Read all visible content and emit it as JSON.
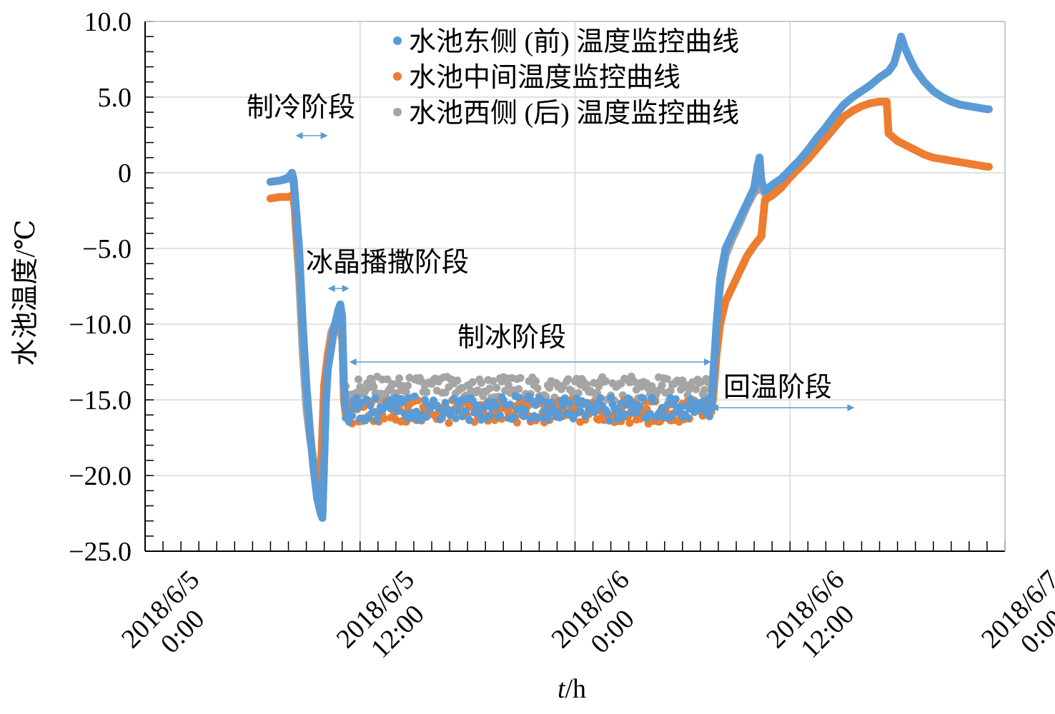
{
  "chart_data": {
    "type": "scatter",
    "ylabel": "水池温度/℃",
    "xlabel_italic": "t",
    "xlabel_unit": "/h",
    "ylim": [
      -25,
      10
    ],
    "xlim_hours": [
      0,
      48
    ],
    "y_ticks": [
      {
        "value": 10,
        "label": "10.0"
      },
      {
        "value": 5,
        "label": "5.0"
      },
      {
        "value": 0,
        "label": "0"
      },
      {
        "value": -5,
        "label": "−5.0"
      },
      {
        "value": -10,
        "label": "−10.0"
      },
      {
        "value": -15,
        "label": "−15.0"
      },
      {
        "value": -20,
        "label": "−20.0"
      },
      {
        "value": -25,
        "label": "−25.0"
      }
    ],
    "x_ticks": [
      {
        "hour": 0,
        "line1": "2018/6/5",
        "line2": "0:00"
      },
      {
        "hour": 12,
        "line1": "2018/6/5",
        "line2": "12:00"
      },
      {
        "hour": 24,
        "line1": "2018/6/6",
        "line2": "0:00"
      },
      {
        "hour": 36,
        "line1": "2018/6/6",
        "line2": "12:00"
      },
      {
        "hour": 48,
        "line1": "2018/6/7",
        "line2": "0:00"
      }
    ],
    "grid": true,
    "legend_position": "top",
    "series": [
      {
        "name": "水池东侧 (前) 温度监控曲线",
        "color": "#5B9BD5",
        "points": [
          [
            7.0,
            -0.6
          ],
          [
            7.6,
            -0.5
          ],
          [
            8.0,
            -0.3
          ],
          [
            8.2,
            0.0
          ],
          [
            8.3,
            -0.5
          ],
          [
            8.4,
            -2.0
          ],
          [
            8.6,
            -5.0
          ],
          [
            8.8,
            -10.0
          ],
          [
            9.0,
            -14.0
          ],
          [
            9.2,
            -17.0
          ],
          [
            9.4,
            -19.5
          ],
          [
            9.6,
            -21.5
          ],
          [
            9.8,
            -22.5
          ],
          [
            9.9,
            -22.8
          ],
          [
            10.0,
            -19.0
          ],
          [
            10.1,
            -15.0
          ],
          [
            10.2,
            -13.0
          ],
          [
            10.4,
            -11.5
          ],
          [
            10.6,
            -10.0
          ],
          [
            10.8,
            -9.0
          ],
          [
            10.9,
            -8.7
          ],
          [
            11.0,
            -9.5
          ],
          [
            11.1,
            -14.0
          ],
          [
            11.2,
            -15.7
          ],
          [
            12.0,
            -15.6
          ],
          [
            14.0,
            -15.6
          ],
          [
            16.0,
            -15.5
          ],
          [
            18.0,
            -15.6
          ],
          [
            20.0,
            -15.5
          ],
          [
            22.0,
            -15.6
          ],
          [
            24.0,
            -15.5
          ],
          [
            26.0,
            -15.6
          ],
          [
            28.0,
            -15.6
          ],
          [
            30.0,
            -15.5
          ],
          [
            31.6,
            -15.6
          ],
          [
            31.7,
            -14.0
          ],
          [
            31.9,
            -10.0
          ],
          [
            32.1,
            -7.0
          ],
          [
            32.4,
            -5.0
          ],
          [
            32.8,
            -4.0
          ],
          [
            33.2,
            -3.0
          ],
          [
            33.6,
            -2.0
          ],
          [
            34.0,
            -1.0
          ],
          [
            34.2,
            0.5
          ],
          [
            34.3,
            1.0
          ],
          [
            34.4,
            -0.5
          ],
          [
            34.6,
            -1.2
          ],
          [
            35.0,
            -0.8
          ],
          [
            35.5,
            -0.4
          ],
          [
            36.0,
            0.2
          ],
          [
            36.5,
            0.8
          ],
          [
            37.0,
            1.5
          ],
          [
            37.5,
            2.3
          ],
          [
            38.0,
            3.0
          ],
          [
            38.5,
            3.8
          ],
          [
            39.0,
            4.5
          ],
          [
            39.5,
            5.0
          ],
          [
            40.0,
            5.4
          ],
          [
            40.5,
            5.8
          ],
          [
            41.0,
            6.3
          ],
          [
            41.5,
            6.7
          ],
          [
            41.8,
            7.2
          ],
          [
            42.0,
            8.0
          ],
          [
            42.2,
            9.0
          ],
          [
            42.4,
            8.3
          ],
          [
            42.7,
            7.5
          ],
          [
            43.0,
            6.8
          ],
          [
            43.5,
            6.0
          ],
          [
            44.0,
            5.4
          ],
          [
            44.5,
            5.0
          ],
          [
            45.0,
            4.7
          ],
          [
            45.5,
            4.5
          ],
          [
            46.0,
            4.4
          ],
          [
            46.5,
            4.3
          ],
          [
            47.0,
            4.2
          ],
          [
            47.1,
            4.2
          ]
        ]
      },
      {
        "name": "水池中间温度监控曲线",
        "color": "#ED7D31",
        "points": [
          [
            7.0,
            -1.7
          ],
          [
            7.5,
            -1.6
          ],
          [
            8.0,
            -1.6
          ],
          [
            8.2,
            -1.5
          ],
          [
            8.3,
            -1.8
          ],
          [
            8.4,
            -3.0
          ],
          [
            8.6,
            -6.0
          ],
          [
            8.8,
            -10.0
          ],
          [
            9.0,
            -14.0
          ],
          [
            9.2,
            -17.0
          ],
          [
            9.4,
            -19.5
          ],
          [
            9.6,
            -21.0
          ],
          [
            9.7,
            -21.8
          ],
          [
            9.8,
            -21.0
          ],
          [
            9.9,
            -17.0
          ],
          [
            10.0,
            -14.0
          ],
          [
            10.2,
            -12.0
          ],
          [
            10.4,
            -11.0
          ],
          [
            10.6,
            -10.0
          ],
          [
            10.8,
            -9.5
          ],
          [
            10.9,
            -9.5
          ],
          [
            11.0,
            -10.0
          ],
          [
            11.1,
            -15.0
          ],
          [
            11.2,
            -16.0
          ],
          [
            12.0,
            -15.8
          ],
          [
            14.0,
            -15.8
          ],
          [
            16.0,
            -15.8
          ],
          [
            18.0,
            -15.8
          ],
          [
            20.0,
            -15.8
          ],
          [
            22.0,
            -15.8
          ],
          [
            24.0,
            -15.8
          ],
          [
            26.0,
            -15.8
          ],
          [
            28.0,
            -15.8
          ],
          [
            30.0,
            -15.8
          ],
          [
            31.6,
            -15.8
          ],
          [
            31.7,
            -15.0
          ],
          [
            31.9,
            -12.0
          ],
          [
            32.1,
            -10.0
          ],
          [
            32.4,
            -8.5
          ],
          [
            32.8,
            -7.5
          ],
          [
            33.2,
            -6.5
          ],
          [
            33.6,
            -5.5
          ],
          [
            34.0,
            -4.8
          ],
          [
            34.4,
            -4.2
          ],
          [
            34.6,
            -1.8
          ],
          [
            35.0,
            -1.5
          ],
          [
            35.5,
            -1.0
          ],
          [
            36.0,
            -0.3
          ],
          [
            36.5,
            0.3
          ],
          [
            37.0,
            0.9
          ],
          [
            37.5,
            1.6
          ],
          [
            38.0,
            2.3
          ],
          [
            38.5,
            3.0
          ],
          [
            39.0,
            3.7
          ],
          [
            39.5,
            4.1
          ],
          [
            40.0,
            4.4
          ],
          [
            40.5,
            4.6
          ],
          [
            41.0,
            4.7
          ],
          [
            41.4,
            4.7
          ],
          [
            41.5,
            2.6
          ],
          [
            42.0,
            2.1
          ],
          [
            42.5,
            1.8
          ],
          [
            43.0,
            1.5
          ],
          [
            43.5,
            1.2
          ],
          [
            44.0,
            1.0
          ],
          [
            44.5,
            0.9
          ],
          [
            45.0,
            0.8
          ],
          [
            45.5,
            0.7
          ],
          [
            46.0,
            0.6
          ],
          [
            46.5,
            0.5
          ],
          [
            47.0,
            0.4
          ],
          [
            47.1,
            0.4
          ]
        ]
      },
      {
        "name": "水池西侧 (后) 温度监控曲线",
        "color": "#A5A5A5",
        "points": [
          [
            7.0,
            -0.6
          ],
          [
            7.6,
            -0.5
          ],
          [
            8.0,
            -0.4
          ],
          [
            8.2,
            -0.3
          ],
          [
            8.3,
            -0.8
          ],
          [
            8.4,
            -3.5
          ],
          [
            8.6,
            -7.0
          ],
          [
            8.8,
            -12.0
          ],
          [
            9.0,
            -15.5
          ],
          [
            9.2,
            -17.5
          ],
          [
            9.4,
            -19.0
          ],
          [
            9.6,
            -20.0
          ],
          [
            9.7,
            -20.5
          ],
          [
            9.8,
            -20.0
          ],
          [
            9.9,
            -17.0
          ],
          [
            10.0,
            -14.0
          ],
          [
            10.2,
            -12.0
          ],
          [
            10.4,
            -10.5
          ],
          [
            10.6,
            -10.0
          ],
          [
            10.8,
            -9.8
          ],
          [
            11.0,
            -11.0
          ],
          [
            11.1,
            -14.5
          ],
          [
            11.2,
            -14.6
          ],
          [
            12.0,
            -14.2
          ],
          [
            14.0,
            -14.3
          ],
          [
            16.0,
            -14.2
          ],
          [
            18.0,
            -14.3
          ],
          [
            20.0,
            -14.2
          ],
          [
            22.0,
            -14.3
          ],
          [
            24.0,
            -14.2
          ],
          [
            26.0,
            -14.3
          ],
          [
            28.0,
            -14.2
          ],
          [
            30.0,
            -14.3
          ],
          [
            31.6,
            -14.3
          ],
          [
            31.7,
            -13.5
          ],
          [
            31.9,
            -10.0
          ],
          [
            32.1,
            -7.5
          ],
          [
            32.4,
            -5.5
          ],
          [
            32.8,
            -4.3
          ],
          [
            33.2,
            -3.3
          ],
          [
            33.6,
            -2.2
          ],
          [
            34.0,
            -1.3
          ],
          [
            34.4,
            -1.0
          ],
          [
            34.6,
            -1.4
          ],
          [
            35.0,
            -1.0
          ],
          [
            35.5,
            -0.5
          ],
          [
            36.0,
            0.1
          ],
          [
            36.5,
            0.7
          ],
          [
            37.0,
            1.4
          ],
          [
            37.5,
            2.2
          ],
          [
            38.0,
            3.0
          ],
          [
            38.5,
            3.8
          ],
          [
            39.0,
            4.5
          ]
        ]
      }
    ],
    "annotations": [
      {
        "text": "制冷阶段",
        "span_hours": [
          8.4,
          10.2
        ]
      },
      {
        "text": "冰晶播撒阶段",
        "span_hours": [
          10.2,
          11.4
        ]
      },
      {
        "text": "制冰阶段",
        "span_hours": [
          11.4,
          31.6
        ]
      },
      {
        "text": "回温阶段",
        "span_hours": [
          31.6,
          39.6
        ]
      }
    ],
    "arrow_color": "#5B9BD5"
  }
}
